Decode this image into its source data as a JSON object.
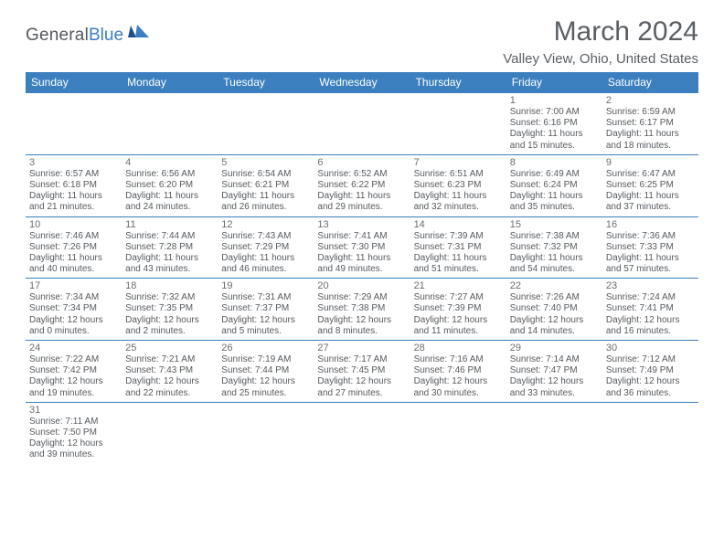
{
  "logo": {
    "text1": "General",
    "text2": "Blue"
  },
  "title": "March 2024",
  "location": "Valley View, Ohio, United States",
  "colors": {
    "header_bg": "#3b7fbf",
    "header_fg": "#ffffff",
    "border": "#3b7fbf",
    "text": "#555a5f",
    "title": "#5a5f64",
    "background": "#ffffff"
  },
  "typography": {
    "title_fontsize": 30,
    "subtitle_fontsize": 15,
    "dayheader_fontsize": 12,
    "daynum_fontsize": 11,
    "body_fontsize": 10
  },
  "day_headers": [
    "Sunday",
    "Monday",
    "Tuesday",
    "Wednesday",
    "Thursday",
    "Friday",
    "Saturday"
  ],
  "labels": {
    "sunrise": "Sunrise:",
    "sunset": "Sunset:",
    "daylight": "Daylight:"
  },
  "weeks": [
    [
      null,
      null,
      null,
      null,
      null,
      {
        "d": "1",
        "sr": "7:00 AM",
        "ss": "6:16 PM",
        "dl1": "11 hours",
        "dl2": "and 15 minutes."
      },
      {
        "d": "2",
        "sr": "6:59 AM",
        "ss": "6:17 PM",
        "dl1": "11 hours",
        "dl2": "and 18 minutes."
      }
    ],
    [
      {
        "d": "3",
        "sr": "6:57 AM",
        "ss": "6:18 PM",
        "dl1": "11 hours",
        "dl2": "and 21 minutes."
      },
      {
        "d": "4",
        "sr": "6:56 AM",
        "ss": "6:20 PM",
        "dl1": "11 hours",
        "dl2": "and 24 minutes."
      },
      {
        "d": "5",
        "sr": "6:54 AM",
        "ss": "6:21 PM",
        "dl1": "11 hours",
        "dl2": "and 26 minutes."
      },
      {
        "d": "6",
        "sr": "6:52 AM",
        "ss": "6:22 PM",
        "dl1": "11 hours",
        "dl2": "and 29 minutes."
      },
      {
        "d": "7",
        "sr": "6:51 AM",
        "ss": "6:23 PM",
        "dl1": "11 hours",
        "dl2": "and 32 minutes."
      },
      {
        "d": "8",
        "sr": "6:49 AM",
        "ss": "6:24 PM",
        "dl1": "11 hours",
        "dl2": "and 35 minutes."
      },
      {
        "d": "9",
        "sr": "6:47 AM",
        "ss": "6:25 PM",
        "dl1": "11 hours",
        "dl2": "and 37 minutes."
      }
    ],
    [
      {
        "d": "10",
        "sr": "7:46 AM",
        "ss": "7:26 PM",
        "dl1": "11 hours",
        "dl2": "and 40 minutes."
      },
      {
        "d": "11",
        "sr": "7:44 AM",
        "ss": "7:28 PM",
        "dl1": "11 hours",
        "dl2": "and 43 minutes."
      },
      {
        "d": "12",
        "sr": "7:43 AM",
        "ss": "7:29 PM",
        "dl1": "11 hours",
        "dl2": "and 46 minutes."
      },
      {
        "d": "13",
        "sr": "7:41 AM",
        "ss": "7:30 PM",
        "dl1": "11 hours",
        "dl2": "and 49 minutes."
      },
      {
        "d": "14",
        "sr": "7:39 AM",
        "ss": "7:31 PM",
        "dl1": "11 hours",
        "dl2": "and 51 minutes."
      },
      {
        "d": "15",
        "sr": "7:38 AM",
        "ss": "7:32 PM",
        "dl1": "11 hours",
        "dl2": "and 54 minutes."
      },
      {
        "d": "16",
        "sr": "7:36 AM",
        "ss": "7:33 PM",
        "dl1": "11 hours",
        "dl2": "and 57 minutes."
      }
    ],
    [
      {
        "d": "17",
        "sr": "7:34 AM",
        "ss": "7:34 PM",
        "dl1": "12 hours",
        "dl2": "and 0 minutes."
      },
      {
        "d": "18",
        "sr": "7:32 AM",
        "ss": "7:35 PM",
        "dl1": "12 hours",
        "dl2": "and 2 minutes."
      },
      {
        "d": "19",
        "sr": "7:31 AM",
        "ss": "7:37 PM",
        "dl1": "12 hours",
        "dl2": "and 5 minutes."
      },
      {
        "d": "20",
        "sr": "7:29 AM",
        "ss": "7:38 PM",
        "dl1": "12 hours",
        "dl2": "and 8 minutes."
      },
      {
        "d": "21",
        "sr": "7:27 AM",
        "ss": "7:39 PM",
        "dl1": "12 hours",
        "dl2": "and 11 minutes."
      },
      {
        "d": "22",
        "sr": "7:26 AM",
        "ss": "7:40 PM",
        "dl1": "12 hours",
        "dl2": "and 14 minutes."
      },
      {
        "d": "23",
        "sr": "7:24 AM",
        "ss": "7:41 PM",
        "dl1": "12 hours",
        "dl2": "and 16 minutes."
      }
    ],
    [
      {
        "d": "24",
        "sr": "7:22 AM",
        "ss": "7:42 PM",
        "dl1": "12 hours",
        "dl2": "and 19 minutes."
      },
      {
        "d": "25",
        "sr": "7:21 AM",
        "ss": "7:43 PM",
        "dl1": "12 hours",
        "dl2": "and 22 minutes."
      },
      {
        "d": "26",
        "sr": "7:19 AM",
        "ss": "7:44 PM",
        "dl1": "12 hours",
        "dl2": "and 25 minutes."
      },
      {
        "d": "27",
        "sr": "7:17 AM",
        "ss": "7:45 PM",
        "dl1": "12 hours",
        "dl2": "and 27 minutes."
      },
      {
        "d": "28",
        "sr": "7:16 AM",
        "ss": "7:46 PM",
        "dl1": "12 hours",
        "dl2": "and 30 minutes."
      },
      {
        "d": "29",
        "sr": "7:14 AM",
        "ss": "7:47 PM",
        "dl1": "12 hours",
        "dl2": "and 33 minutes."
      },
      {
        "d": "30",
        "sr": "7:12 AM",
        "ss": "7:49 PM",
        "dl1": "12 hours",
        "dl2": "and 36 minutes."
      }
    ],
    [
      {
        "d": "31",
        "sr": "7:11 AM",
        "ss": "7:50 PM",
        "dl1": "12 hours",
        "dl2": "and 39 minutes."
      },
      null,
      null,
      null,
      null,
      null,
      null
    ]
  ]
}
